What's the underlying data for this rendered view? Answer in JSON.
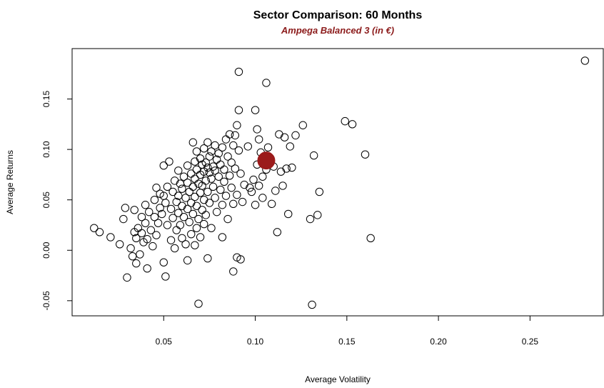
{
  "chart_data": {
    "type": "scatter",
    "title": "Sector Comparison: 60 Months",
    "subtitle": "Ampega Balanced 3 (in €)",
    "xlabel": "Average Volatility",
    "ylabel": "Average Returns",
    "xlim": [
      0.0,
      0.29
    ],
    "ylim": [
      -0.065,
      0.2
    ],
    "xticks": [
      0.05,
      0.1,
      0.15,
      0.2,
      0.25
    ],
    "xtick_labels": [
      "0.05",
      "0.10",
      "0.15",
      "0.20",
      "0.25"
    ],
    "yticks": [
      -0.05,
      0.0,
      0.05,
      0.1,
      0.15
    ],
    "ytick_labels": [
      "-0.05",
      "0.00",
      "0.05",
      "0.10",
      "0.15"
    ],
    "grid": false,
    "colors": {
      "points": "#000000",
      "highlight": "#9b1b1b",
      "subtitle": "#8b1a1a"
    },
    "highlight": {
      "x": 0.106,
      "y": 0.089
    },
    "points": [
      [
        0.012,
        0.022
      ],
      [
        0.015,
        0.018
      ],
      [
        0.021,
        0.013
      ],
      [
        0.026,
        0.006
      ],
      [
        0.028,
        0.031
      ],
      [
        0.029,
        0.042
      ],
      [
        0.03,
        -0.027
      ],
      [
        0.032,
        0.002
      ],
      [
        0.033,
        -0.006
      ],
      [
        0.034,
        0.04
      ],
      [
        0.034,
        0.018
      ],
      [
        0.035,
        0.012
      ],
      [
        0.035,
        -0.013
      ],
      [
        0.036,
        0.022
      ],
      [
        0.037,
        -0.004
      ],
      [
        0.038,
        0.033
      ],
      [
        0.038,
        0.017
      ],
      [
        0.039,
        0.008
      ],
      [
        0.04,
        0.045
      ],
      [
        0.04,
        0.027
      ],
      [
        0.041,
        0.011
      ],
      [
        0.041,
        -0.018
      ],
      [
        0.042,
        0.038
      ],
      [
        0.043,
        0.02
      ],
      [
        0.044,
        0.004
      ],
      [
        0.045,
        0.033
      ],
      [
        0.045,
        0.05
      ],
      [
        0.046,
        0.062
      ],
      [
        0.046,
        0.015
      ],
      [
        0.047,
        0.027
      ],
      [
        0.048,
        0.056
      ],
      [
        0.048,
        0.042
      ],
      [
        0.049,
        0.036
      ],
      [
        0.05,
        0.084
      ],
      [
        0.05,
        0.054
      ],
      [
        0.05,
        -0.012
      ],
      [
        0.051,
        -0.026
      ],
      [
        0.051,
        0.047
      ],
      [
        0.052,
        0.025
      ],
      [
        0.052,
        0.063
      ],
      [
        0.053,
        0.088
      ],
      [
        0.054,
        0.041
      ],
      [
        0.054,
        0.01
      ],
      [
        0.055,
        0.058
      ],
      [
        0.055,
        0.032
      ],
      [
        0.056,
        0.069
      ],
      [
        0.056,
        0.002
      ],
      [
        0.057,
        0.048
      ],
      [
        0.057,
        0.02
      ],
      [
        0.058,
        0.079
      ],
      [
        0.058,
        0.054
      ],
      [
        0.058,
        0.037
      ],
      [
        0.059,
        0.066
      ],
      [
        0.059,
        0.025
      ],
      [
        0.06,
        0.061
      ],
      [
        0.06,
        0.044
      ],
      [
        0.06,
        0.012
      ],
      [
        0.061,
        0.073
      ],
      [
        0.061,
        0.033
      ],
      [
        0.062,
        0.052
      ],
      [
        0.062,
        0.006
      ],
      [
        0.063,
        0.084
      ],
      [
        0.063,
        0.067
      ],
      [
        0.063,
        0.041
      ],
      [
        0.063,
        -0.01
      ],
      [
        0.064,
        0.058
      ],
      [
        0.064,
        0.028
      ],
      [
        0.065,
        0.076
      ],
      [
        0.065,
        0.047
      ],
      [
        0.065,
        0.016
      ],
      [
        0.066,
        0.107
      ],
      [
        0.066,
        0.063
      ],
      [
        0.066,
        0.036
      ],
      [
        0.067,
        0.088
      ],
      [
        0.067,
        0.071
      ],
      [
        0.067,
        0.053
      ],
      [
        0.067,
        0.005
      ],
      [
        0.068,
        0.098
      ],
      [
        0.068,
        0.08
      ],
      [
        0.068,
        0.044
      ],
      [
        0.068,
        0.022
      ],
      [
        0.069,
        -0.053
      ],
      [
        0.069,
        0.066
      ],
      [
        0.069,
        0.031
      ],
      [
        0.07,
        0.091
      ],
      [
        0.07,
        0.075
      ],
      [
        0.07,
        0.057
      ],
      [
        0.07,
        0.013
      ],
      [
        0.071,
        0.085
      ],
      [
        0.071,
        0.064
      ],
      [
        0.071,
        0.04
      ],
      [
        0.072,
        0.101
      ],
      [
        0.072,
        0.078
      ],
      [
        0.072,
        0.05
      ],
      [
        0.072,
        0.026
      ],
      [
        0.073,
        0.087
      ],
      [
        0.073,
        0.069
      ],
      [
        0.073,
        0.035
      ],
      [
        0.074,
        0.107
      ],
      [
        0.074,
        0.082
      ],
      [
        0.074,
        0.058
      ],
      [
        0.074,
        -0.008
      ],
      [
        0.075,
        0.093
      ],
      [
        0.075,
        0.077
      ],
      [
        0.075,
        0.047
      ],
      [
        0.076,
        0.098
      ],
      [
        0.076,
        0.071
      ],
      [
        0.076,
        0.022
      ],
      [
        0.077,
        0.083
      ],
      [
        0.077,
        0.063
      ],
      [
        0.078,
        0.104
      ],
      [
        0.078,
        0.079
      ],
      [
        0.078,
        0.052
      ],
      [
        0.079,
        0.09
      ],
      [
        0.079,
        0.038
      ],
      [
        0.08,
        0.096
      ],
      [
        0.08,
        0.073
      ],
      [
        0.081,
        0.085
      ],
      [
        0.081,
        0.06
      ],
      [
        0.082,
        0.102
      ],
      [
        0.082,
        0.045
      ],
      [
        0.082,
        0.013
      ],
      [
        0.083,
        0.08
      ],
      [
        0.083,
        0.068
      ],
      [
        0.084,
        0.11
      ],
      [
        0.084,
        0.054
      ],
      [
        0.085,
        0.093
      ],
      [
        0.085,
        0.031
      ],
      [
        0.086,
        0.074
      ],
      [
        0.086,
        0.115
      ],
      [
        0.087,
        0.062
      ],
      [
        0.087,
        0.087
      ],
      [
        0.088,
        0.046
      ],
      [
        0.088,
        0.104
      ],
      [
        0.088,
        -0.021
      ],
      [
        0.089,
        0.081
      ],
      [
        0.089,
        0.114
      ],
      [
        0.09,
        0.124
      ],
      [
        0.09,
        0.055
      ],
      [
        0.09,
        -0.007
      ],
      [
        0.091,
        0.139
      ],
      [
        0.091,
        0.177
      ],
      [
        0.091,
        0.099
      ],
      [
        0.092,
        0.076
      ],
      [
        0.092,
        -0.009
      ],
      [
        0.093,
        0.048
      ],
      [
        0.094,
        0.065
      ],
      [
        0.096,
        0.103
      ],
      [
        0.097,
        0.062
      ],
      [
        0.098,
        0.058
      ],
      [
        0.099,
        0.07
      ],
      [
        0.1,
        0.045
      ],
      [
        0.1,
        0.139
      ],
      [
        0.101,
        0.12
      ],
      [
        0.101,
        0.085
      ],
      [
        0.102,
        0.11
      ],
      [
        0.102,
        0.064
      ],
      [
        0.103,
        0.097
      ],
      [
        0.104,
        0.052
      ],
      [
        0.104,
        0.073
      ],
      [
        0.106,
        0.166
      ],
      [
        0.106,
        0.08
      ],
      [
        0.107,
        0.102
      ],
      [
        0.108,
        0.091
      ],
      [
        0.109,
        0.046
      ],
      [
        0.11,
        0.083
      ],
      [
        0.111,
        0.059
      ],
      [
        0.112,
        0.018
      ],
      [
        0.113,
        0.115
      ],
      [
        0.114,
        0.078
      ],
      [
        0.115,
        0.064
      ],
      [
        0.116,
        0.112
      ],
      [
        0.117,
        0.081
      ],
      [
        0.118,
        0.036
      ],
      [
        0.119,
        0.103
      ],
      [
        0.12,
        0.082
      ],
      [
        0.122,
        0.114
      ],
      [
        0.126,
        0.124
      ],
      [
        0.13,
        0.031
      ],
      [
        0.131,
        -0.054
      ],
      [
        0.132,
        0.094
      ],
      [
        0.134,
        0.035
      ],
      [
        0.135,
        0.058
      ],
      [
        0.149,
        0.128
      ],
      [
        0.153,
        0.125
      ],
      [
        0.16,
        0.095
      ],
      [
        0.163,
        0.012
      ],
      [
        0.28,
        0.188
      ]
    ]
  }
}
